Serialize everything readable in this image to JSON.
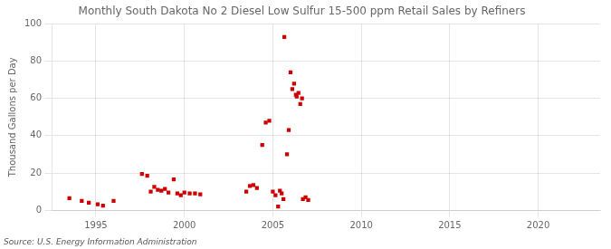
{
  "chart_data": {
    "type": "scatter",
    "title": "Monthly South Dakota No 2 Diesel Low Sulfur 15-500 ppm Retail Sales by Refiners",
    "ylabel": "Thousand Gallons per Day",
    "annotations": [
      "Source: U.S. Energy Information Administration"
    ],
    "color": "#cc0000",
    "marker": "square",
    "grid": true,
    "xlim": [
      1992.5,
      2023.5
    ],
    "xticks": [
      1995,
      2000,
      2005,
      2010,
      2015,
      2020
    ],
    "ylim": [
      0,
      100
    ],
    "yticks": [
      0,
      20,
      40,
      60,
      80,
      100
    ],
    "x": [
      1993.5,
      1994.2,
      1994.6,
      1995.1,
      1995.4,
      1996.0,
      1997.6,
      1997.9,
      1998.1,
      1998.3,
      1998.5,
      1998.7,
      1998.9,
      1999.1,
      1999.4,
      1999.6,
      1999.8,
      2000.0,
      2000.3,
      2000.6,
      2000.9,
      2003.5,
      2003.7,
      2003.9,
      2004.1,
      2004.4,
      2004.6,
      2004.8,
      2005.0,
      2005.15,
      2005.3,
      2005.4,
      2005.5,
      2005.6,
      2005.65,
      2005.8,
      2005.9,
      2006.0,
      2006.1,
      2006.2,
      2006.3,
      2006.35,
      2006.45,
      2006.55,
      2006.65,
      2006.7,
      2006.85,
      2007.0
    ],
    "values": [
      6.5,
      5.0,
      4.0,
      3.2,
      2.5,
      5.0,
      19.5,
      18.5,
      10.0,
      12.5,
      11.0,
      10.5,
      11.5,
      9.5,
      16.5,
      9.0,
      8.0,
      9.5,
      9.0,
      9.0,
      8.5,
      10.0,
      13.0,
      13.5,
      12.0,
      35.0,
      47.0,
      48.0,
      10.0,
      8.0,
      2.0,
      10.5,
      9.0,
      6.0,
      93.0,
      30.0,
      43.0,
      74.0,
      65.0,
      68.0,
      62.0,
      61.0,
      63.0,
      57.0,
      60.0,
      6.0,
      7.0,
      5.5
    ]
  }
}
